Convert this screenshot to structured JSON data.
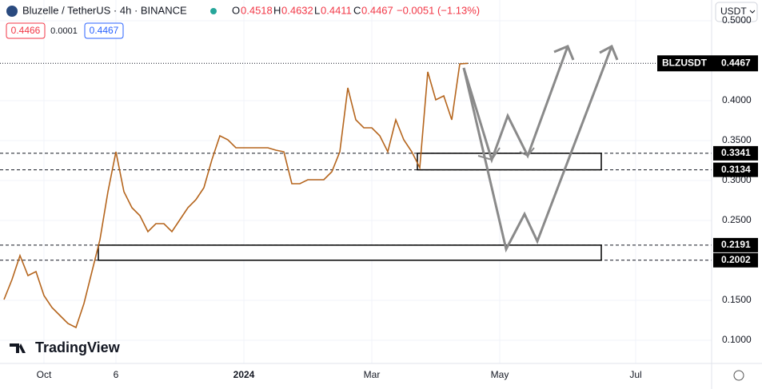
{
  "header": {
    "symbol": "Bluzelle / TetherUS · 4h · BINANCE",
    "open_label": "O",
    "open": "0.4518",
    "high_label": "H",
    "high": "0.4632",
    "low_label": "L",
    "low": "0.4411",
    "close_label": "C",
    "close": "0.4467",
    "change": "−0.0051 (−1.13%)",
    "bid": "0.4466",
    "spread": "0.0001",
    "ask": "0.4467",
    "currency": "USDT",
    "logo": "TradingView"
  },
  "chart_data": {
    "type": "line",
    "title": "BLZUSDT",
    "color": "#b5651d",
    "categories": [
      null,
      null,
      null,
      null,
      null,
      "Oct",
      null,
      null,
      null,
      null,
      null,
      null,
      null,
      null,
      "6",
      null,
      null,
      null,
      null,
      null,
      null,
      null,
      null,
      null,
      null,
      null,
      null,
      null,
      null,
      null,
      "2024",
      null,
      null,
      null,
      null,
      null,
      null,
      null,
      null,
      null,
      null,
      null,
      null,
      null,
      null,
      null,
      "Mar",
      null,
      null,
      null,
      null,
      null,
      null,
      null,
      null,
      null,
      null,
      null,
      null,
      null,
      null,
      null,
      "May",
      null,
      null,
      null,
      null,
      null,
      null,
      null,
      null,
      null,
      null,
      null,
      null,
      null,
      null,
      null,
      null,
      "Jul",
      null,
      null,
      null,
      null,
      null,
      null,
      null,
      null,
      null
    ],
    "values": [
      0.151,
      0.176,
      0.206,
      0.181,
      0.186,
      0.156,
      0.141,
      0.131,
      0.121,
      0.116,
      0.146,
      0.186,
      0.226,
      0.286,
      0.336,
      0.286,
      0.266,
      0.256,
      0.236,
      0.246,
      0.246,
      0.236,
      0.251,
      0.266,
      0.276,
      0.291,
      0.326,
      0.356,
      0.351,
      0.341,
      0.341,
      0.341,
      0.341,
      0.341,
      0.338,
      0.336,
      0.296,
      0.296,
      0.301,
      0.301,
      0.301,
      0.311,
      0.336,
      0.416,
      0.376,
      0.366,
      0.366,
      0.356,
      0.336,
      0.376,
      0.351,
      0.336,
      0.316,
      0.436,
      0.401,
      0.406,
      0.376,
      0.446,
      0.4467,
      null,
      null,
      null,
      null,
      null,
      null,
      null,
      null,
      null,
      null,
      null,
      null,
      null,
      null,
      null,
      null,
      null,
      null,
      null,
      null,
      null,
      null,
      null,
      null,
      null,
      null,
      null,
      null,
      null,
      null
    ],
    "last_price": 0.4467,
    "support_zones": [
      [
        0.3134,
        0.3341
      ],
      [
        0.2002,
        0.2191
      ]
    ],
    "ylim": [
      0.071,
      0.526
    ],
    "yticks": [
      {
        "value": 0.1,
        "label": "0.1000"
      },
      {
        "value": 0.15,
        "label": "0.1500"
      },
      {
        "value": 0.25,
        "label": "0.2500"
      },
      {
        "value": 0.3,
        "label": "0.3000"
      },
      {
        "value": 0.35,
        "label": "0.3500"
      },
      {
        "value": 0.4,
        "label": "0.4000"
      },
      {
        "value": 0.5,
        "label": "0.5000"
      }
    ],
    "grid": true
  }
}
